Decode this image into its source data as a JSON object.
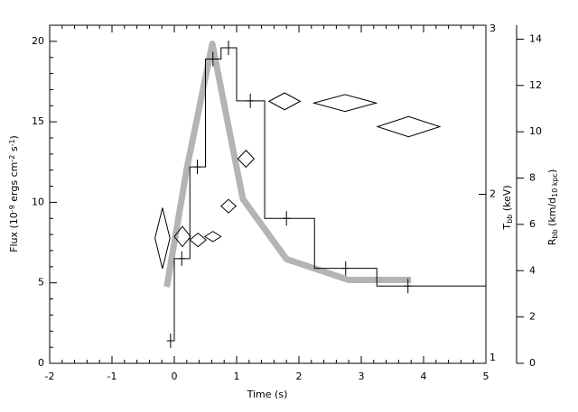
{
  "chart_data": {
    "type": "combo",
    "xlabel": "Time (s)",
    "ylabel": [
      {
        "text": "Flux (10"
      },
      {
        "text": "-9",
        "shift": "super"
      },
      {
        "text": " ergs cm"
      },
      {
        "text": "-2",
        "shift": "super"
      },
      {
        "text": " s"
      },
      {
        "text": "-1",
        "shift": "super"
      },
      {
        "text": ")"
      }
    ],
    "y2label": [
      {
        "text": "T"
      },
      {
        "text": "bb",
        "shift": "sub"
      },
      {
        "text": " (keV)"
      }
    ],
    "y3label": [
      {
        "text": "R"
      },
      {
        "text": "bb",
        "shift": "sub"
      },
      {
        "text": " (km/d"
      },
      {
        "text": "10 kpc",
        "shift": "sub"
      },
      {
        "text": ")"
      }
    ],
    "xlim": [
      -2,
      5
    ],
    "xticks": [
      -2,
      -1,
      0,
      1,
      2,
      3,
      4,
      5
    ],
    "xminor": 5,
    "ylim": [
      0,
      21
    ],
    "yticks": [
      0,
      5,
      10,
      15,
      20
    ],
    "yminor": 5,
    "y2lim": [
      1,
      3
    ],
    "y2ticks": [
      1,
      2,
      3
    ],
    "y3lim": [
      0,
      14.6
    ],
    "y3ticks": [
      0,
      2,
      4,
      6,
      8,
      10,
      12,
      14
    ],
    "flux": {
      "kind": "step",
      "color": "#000000",
      "bins": [
        -0.12,
        0,
        0.25,
        0.5,
        0.75,
        1.0,
        1.45,
        2.25,
        3.25,
        5
      ],
      "values": [
        1.4,
        6.5,
        12.2,
        18.9,
        19.6,
        16.3,
        9.0,
        5.9,
        4.8
      ],
      "cross_x": [
        -0.06,
        0.12,
        0.37,
        0.62,
        0.87,
        1.22,
        1.8,
        2.75,
        3.75
      ]
    },
    "radius": {
      "kind": "line",
      "axis": "y3",
      "color": "#b4b4b4",
      "x": [
        -0.12,
        0.2,
        0.61,
        0.85,
        1.1,
        1.8,
        2.8,
        3.8
      ],
      "values": [
        3.3,
        8.4,
        13.8,
        10.5,
        7.1,
        4.5,
        3.6,
        3.6
      ]
    },
    "temperature": {
      "kind": "diamond",
      "axis": "y2",
      "color": "#000000",
      "x": [
        -0.19,
        0.13,
        0.38,
        0.62,
        0.87,
        1.15,
        1.77,
        2.74,
        3.76
      ],
      "xerr": [
        0.12,
        0.13,
        0.13,
        0.13,
        0.12,
        0.13,
        0.25,
        0.5,
        0.5
      ],
      "values": [
        1.74,
        1.75,
        1.73,
        1.75,
        1.93,
        2.21,
        2.55,
        2.54,
        2.4
      ],
      "yerr": [
        0.18,
        0.06,
        0.04,
        0.03,
        0.04,
        0.05,
        0.05,
        0.05,
        0.06
      ]
    }
  }
}
